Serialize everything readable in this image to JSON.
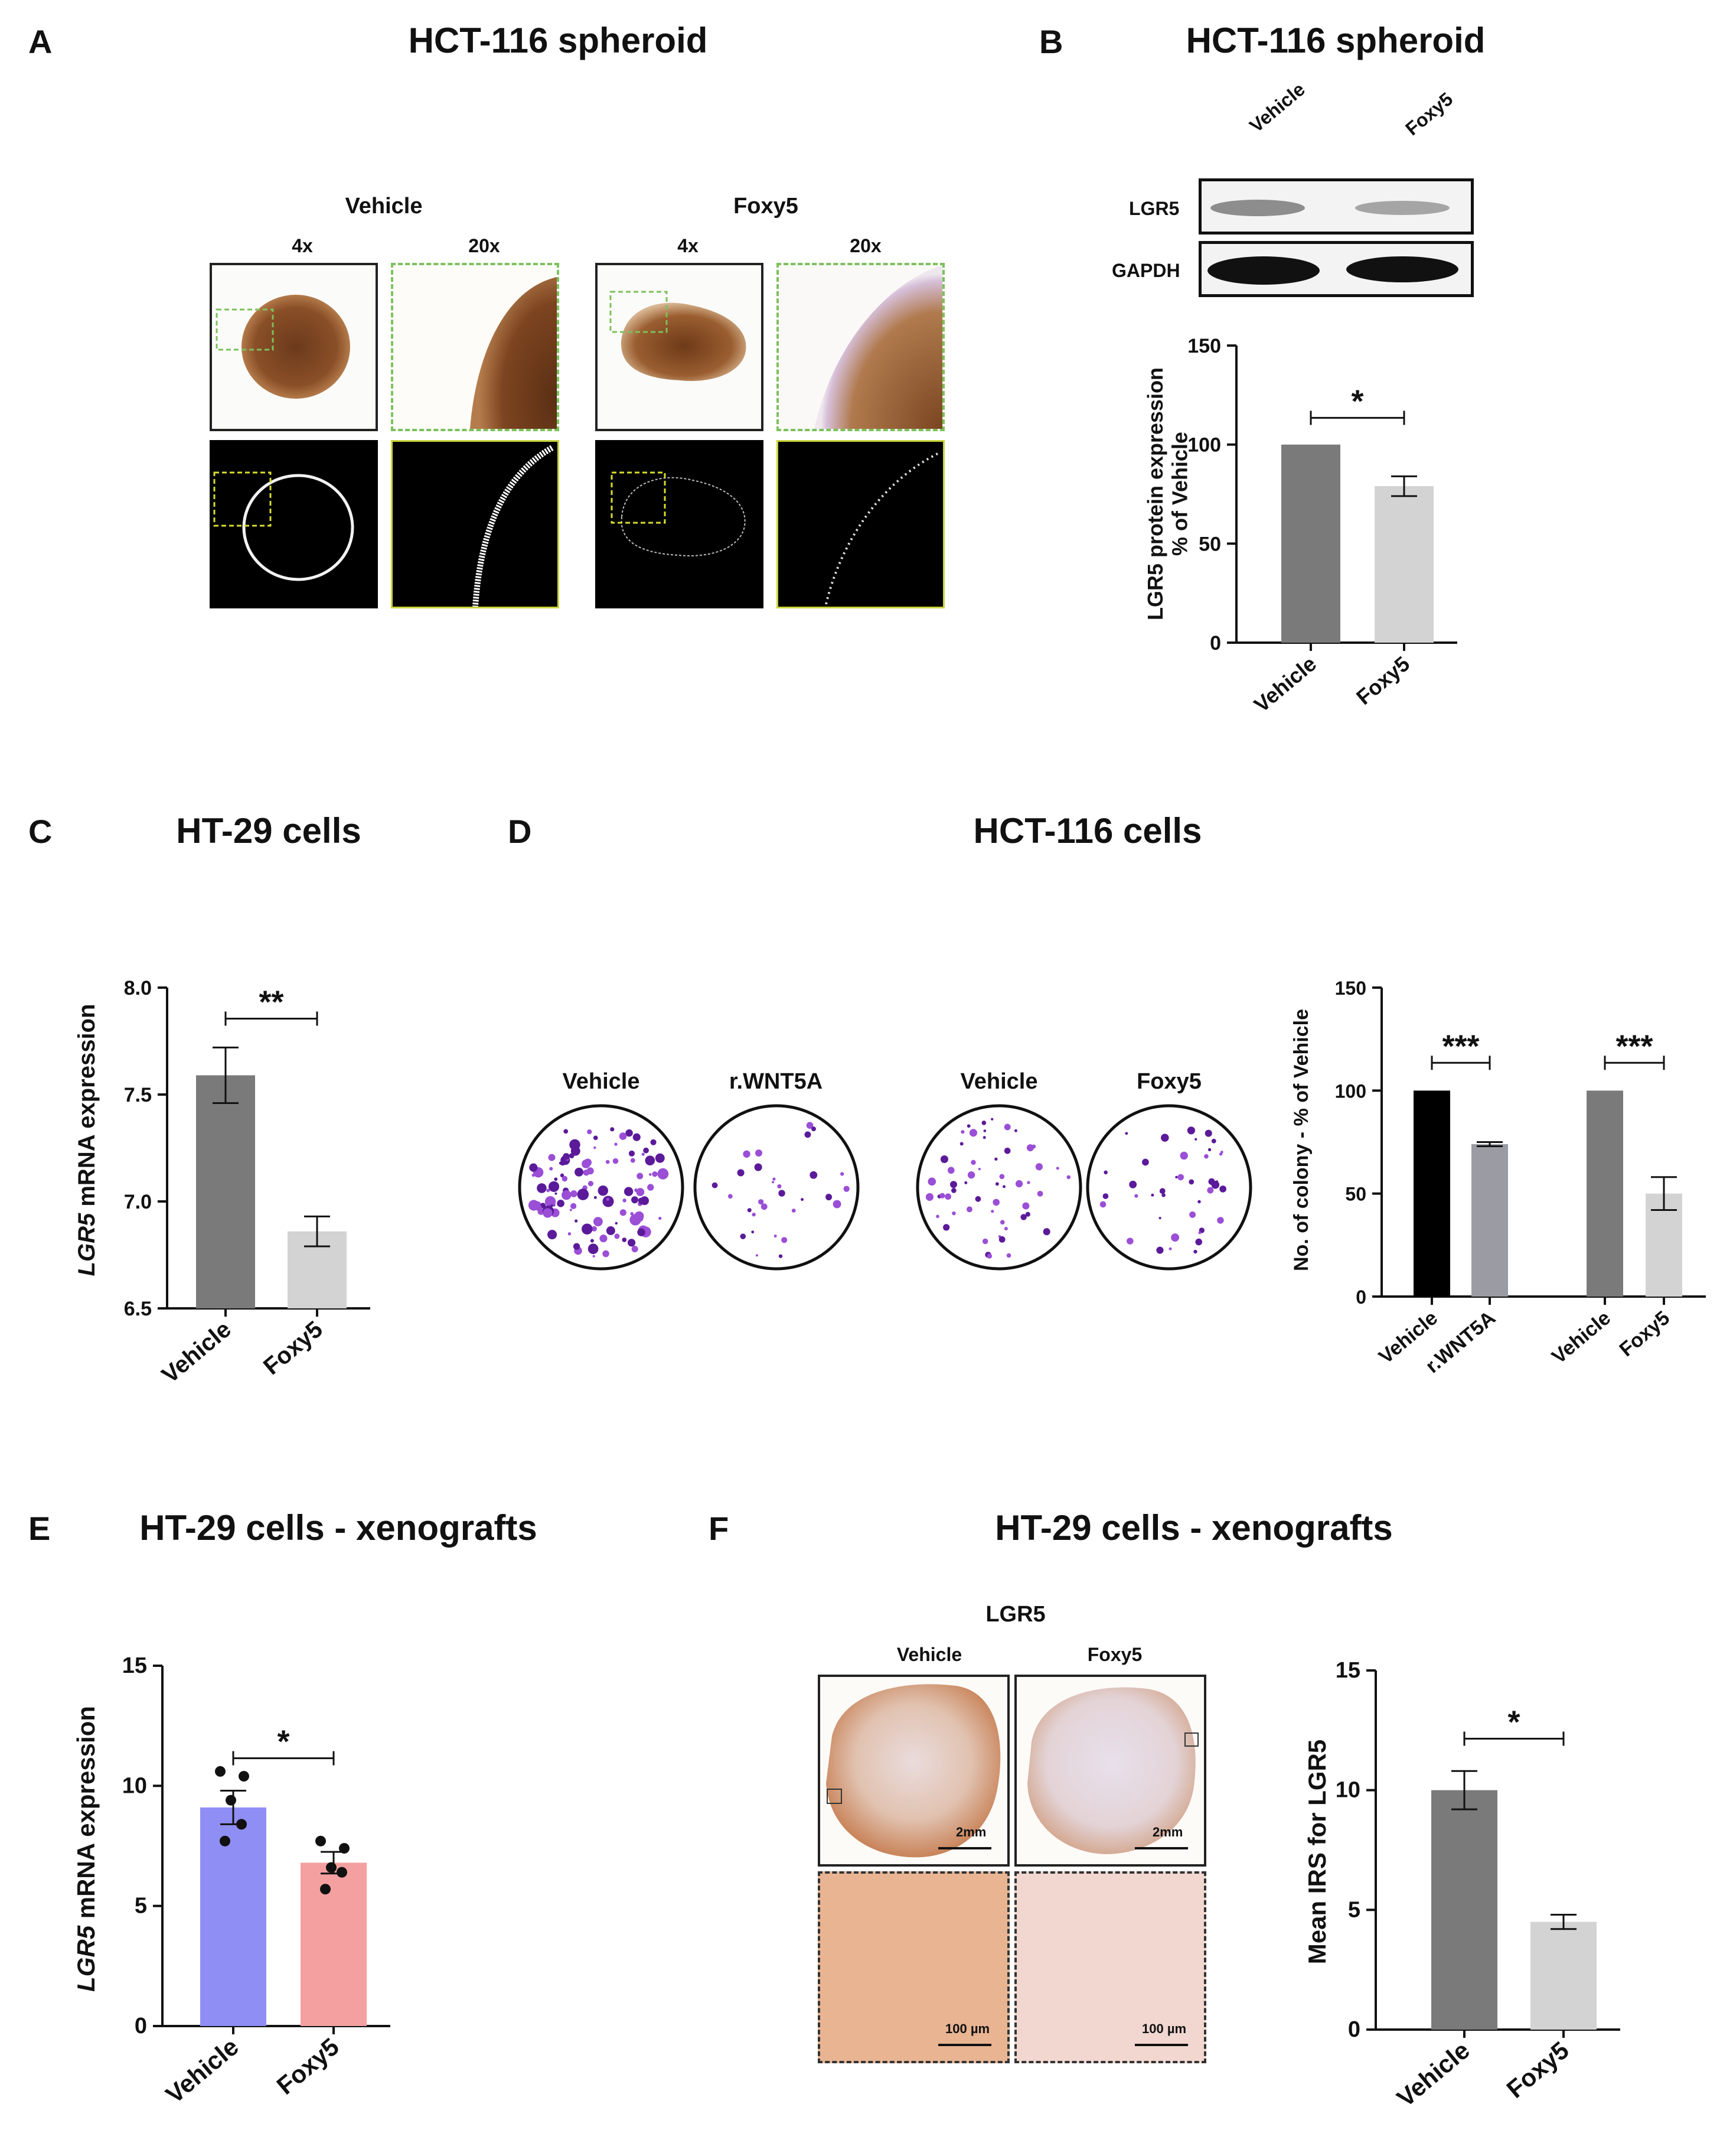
{
  "panels": {
    "A": {
      "letter": "A",
      "title": "HCT-116 spheroid",
      "vehicle": "Vehicle",
      "foxy5": "Foxy5",
      "mag4": "4x",
      "mag20": "20x"
    },
    "B": {
      "letter": "B",
      "title": "HCT-116 spheroid",
      "blot_lanes": [
        "Vehicle",
        "Foxy5"
      ],
      "blot_rows": [
        "LGR5",
        "GAPDH"
      ]
    },
    "C": {
      "letter": "C",
      "title": "HT-29 cells"
    },
    "D": {
      "letter": "D",
      "title": "HCT-116 cells",
      "well_labels": [
        "Vehicle",
        "r.WNT5A",
        "Vehicle",
        "Foxy5"
      ]
    },
    "E": {
      "letter": "E",
      "title": "HT-29 cells - xenografts"
    },
    "F": {
      "letter": "F",
      "title": "HT-29 cells - xenografts",
      "ihc_title": "LGR5",
      "ihc_vehicle": "Vehicle",
      "ihc_foxy5": "Foxy5",
      "scale_2mm": "2mm",
      "scale_100um": "100 µm"
    }
  },
  "chart_data": [
    {
      "id": "B",
      "type": "bar",
      "categories": [
        "Vehicle",
        "Foxy5"
      ],
      "values": [
        100,
        79
      ],
      "errors": [
        0,
        5
      ],
      "colors": [
        "#7a7a7a",
        "#d3d3d3"
      ],
      "ylabel": "LGR5 protein expression\n% of Vehicle",
      "ylim": [
        0,
        150
      ],
      "yticks": [
        "0",
        "50",
        "100",
        "150"
      ],
      "significance": [
        {
          "from": 0,
          "to": 1,
          "label": "*"
        }
      ]
    },
    {
      "id": "C",
      "type": "bar",
      "categories": [
        "Vehicle",
        "Foxy5"
      ],
      "values": [
        7.59,
        6.86
      ],
      "errors": [
        0.13,
        0.07
      ],
      "colors": [
        "#7a7a7a",
        "#d3d3d3"
      ],
      "ylabel": "LGR5 mRNA expression",
      "ylim": [
        6.5,
        8.0
      ],
      "yticks": [
        "6.5",
        "7.0",
        "7.5",
        "8.0"
      ],
      "significance": [
        {
          "from": 0,
          "to": 1,
          "label": "**"
        }
      ]
    },
    {
      "id": "D",
      "type": "bar",
      "categories": [
        "Vehicle",
        "r.WNT5A",
        "Vehicle",
        "Foxy5"
      ],
      "values": [
        100,
        74,
        100,
        50
      ],
      "errors": [
        0,
        1,
        0,
        8
      ],
      "colors": [
        "#000000",
        "#9b9ba3",
        "#7a7a7a",
        "#d3d3d3"
      ],
      "ylabel": "No. of colony - % of Vehicle",
      "ylim": [
        0,
        150
      ],
      "yticks": [
        "0",
        "50",
        "100",
        "150"
      ],
      "significance": [
        {
          "from": 0,
          "to": 1,
          "label": "***"
        },
        {
          "from": 2,
          "to": 3,
          "label": "***"
        }
      ]
    },
    {
      "id": "E",
      "type": "bar",
      "categories": [
        "Vehicle",
        "Foxy5"
      ],
      "values": [
        9.1,
        6.8
      ],
      "errors": [
        0.7,
        0.45
      ],
      "colors": [
        "#8f8ef5",
        "#f4a0a0"
      ],
      "points": [
        [
          10.6,
          10.4,
          9.4,
          8.4,
          7.7
        ],
        [
          7.7,
          7.4,
          6.6,
          6.4,
          5.7
        ]
      ],
      "ylabel": "LGR5 mRNA expression",
      "ylim": [
        0,
        15
      ],
      "yticks": [
        "0",
        "5",
        "10",
        "15"
      ],
      "significance": [
        {
          "from": 0,
          "to": 1,
          "label": "*"
        }
      ]
    },
    {
      "id": "F",
      "type": "bar",
      "categories": [
        "Vehicle",
        "Foxy5"
      ],
      "values": [
        10.0,
        4.5
      ],
      "errors": [
        0.8,
        0.3
      ],
      "colors": [
        "#7a7a7a",
        "#d3d3d3"
      ],
      "ylabel": "Mean IRS for LGR5",
      "ylim": [
        0,
        15
      ],
      "yticks": [
        "0",
        "5",
        "10",
        "15"
      ],
      "significance": [
        {
          "from": 0,
          "to": 1,
          "label": "*"
        }
      ]
    }
  ]
}
